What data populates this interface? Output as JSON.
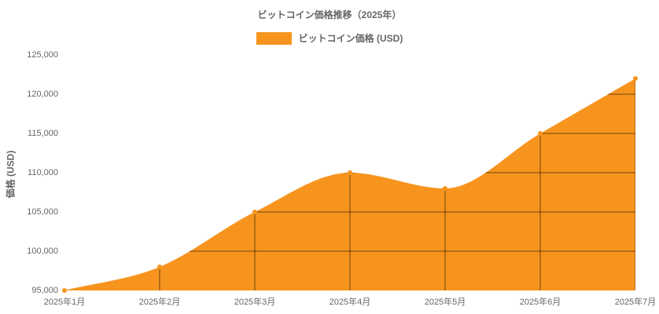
{
  "title": "ビットコイン価格推移（2025年）",
  "legend": {
    "label": "ビットコイン価格 (USD)",
    "swatch_color": "#F7941E"
  },
  "y_axis": {
    "label": "価格 (USD)"
  },
  "chart_data": {
    "type": "area",
    "title": "ビットコイン価格推移（2025年）",
    "categories": [
      "2025年1月",
      "2025年2月",
      "2025年3月",
      "2025年4月",
      "2025年5月",
      "2025年6月",
      "2025年7月"
    ],
    "series": [
      {
        "name": "ビットコイン価格 (USD)",
        "values": [
          95000,
          98000,
          105000,
          110000,
          108000,
          115000,
          122000
        ]
      }
    ],
    "xlabel": "",
    "ylabel": "価格 (USD)",
    "ylim": [
      95000,
      125000
    ],
    "ytick_step": 5000,
    "grid": true,
    "grid_clipped_to_area": true,
    "curve": "smooth-monotone",
    "legend_position": "top",
    "colors": {
      "area": "#F7941E",
      "marker": "#F7941E",
      "grid": "rgba(0,0,0,0.55)",
      "text": "#666666"
    }
  }
}
